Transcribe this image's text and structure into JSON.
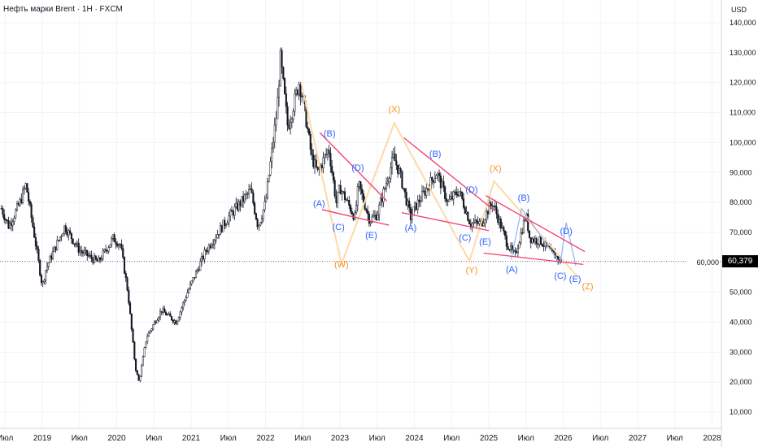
{
  "header": {
    "title": "Нефть марки Brent · 1Н · FXCM"
  },
  "price_scale": {
    "currency": "USD",
    "current_price": "60,379"
  },
  "chart_data": {
    "type": "candlestick",
    "title": "Нефть марки Brent · 1Н · FXCM",
    "ylabel": "USD",
    "ylim": [
      0,
      145000
    ],
    "xlim": [
      2018.45,
      2028.1
    ],
    "y_ticks": [
      "140,000",
      "130,000",
      "120,000",
      "110,000",
      "100,000",
      "90,000",
      "80,000",
      "70,000",
      "60,000",
      "50,000",
      "40,000",
      "30,000",
      "20,000",
      "10,000"
    ],
    "y_tick_values": [
      140,
      130,
      120,
      110,
      100,
      90,
      80,
      70,
      60,
      50,
      40,
      30,
      20,
      10
    ],
    "x_ticks": [
      {
        "t": 2018.5,
        "label": "Июл"
      },
      {
        "t": 2019,
        "label": "2019"
      },
      {
        "t": 2019.5,
        "label": "Июл"
      },
      {
        "t": 2020,
        "label": "2020"
      },
      {
        "t": 2020.5,
        "label": "Июл"
      },
      {
        "t": 2021,
        "label": "2021"
      },
      {
        "t": 2021.5,
        "label": "Июл"
      },
      {
        "t": 2022,
        "label": "2022"
      },
      {
        "t": 2022.5,
        "label": "Июл"
      },
      {
        "t": 2023,
        "label": "2023"
      },
      {
        "t": 2023.5,
        "label": "Июл"
      },
      {
        "t": 2024,
        "label": "2024"
      },
      {
        "t": 2024.5,
        "label": "Июл"
      },
      {
        "t": 2025,
        "label": "2025"
      },
      {
        "t": 2025.5,
        "label": "Июл"
      },
      {
        "t": 2026,
        "label": "2026"
      },
      {
        "t": 2026.5,
        "label": "Июл"
      },
      {
        "t": 2027,
        "label": "2027"
      },
      {
        "t": 2027.5,
        "label": "Июл"
      },
      {
        "t": 2028,
        "label": "2028"
      }
    ],
    "current_price": 60.379,
    "price_path": [
      [
        2018.45,
        78
      ],
      [
        2018.55,
        72
      ],
      [
        2018.7,
        80
      ],
      [
        2018.78,
        86
      ],
      [
        2018.9,
        68
      ],
      [
        2019.0,
        52
      ],
      [
        2019.05,
        58
      ],
      [
        2019.3,
        72
      ],
      [
        2019.5,
        64
      ],
      [
        2019.75,
        60
      ],
      [
        2019.95,
        68
      ],
      [
        2020.05,
        66
      ],
      [
        2020.15,
        50
      ],
      [
        2020.25,
        25
      ],
      [
        2020.3,
        20
      ],
      [
        2020.4,
        35
      ],
      [
        2020.6,
        44
      ],
      [
        2020.8,
        40
      ],
      [
        2020.95,
        50
      ],
      [
        2021.2,
        64
      ],
      [
        2021.5,
        75
      ],
      [
        2021.8,
        84
      ],
      [
        2021.9,
        72
      ],
      [
        2022.0,
        80
      ],
      [
        2022.15,
        110
      ],
      [
        2022.2,
        128
      ],
      [
        2022.3,
        105
      ],
      [
        2022.45,
        120
      ],
      [
        2022.5,
        115
      ],
      [
        2022.62,
        95
      ],
      [
        2022.7,
        90
      ],
      [
        2022.85,
        98
      ],
      [
        2022.95,
        80
      ],
      [
        2023.0,
        85
      ],
      [
        2023.2,
        75
      ],
      [
        2023.25,
        86
      ],
      [
        2023.4,
        74
      ],
      [
        2023.5,
        76
      ],
      [
        2023.72,
        95
      ],
      [
        2023.8,
        90
      ],
      [
        2023.95,
        75
      ],
      [
        2024.0,
        78
      ],
      [
        2024.3,
        90
      ],
      [
        2024.45,
        80
      ],
      [
        2024.6,
        84
      ],
      [
        2024.75,
        73
      ],
      [
        2024.9,
        73
      ],
      [
        2025.0,
        78
      ],
      [
        2025.05,
        80
      ],
      [
        2025.25,
        66
      ],
      [
        2025.35,
        62
      ],
      [
        2025.5,
        76
      ],
      [
        2025.55,
        68
      ],
      [
        2025.7,
        67
      ],
      [
        2025.85,
        63
      ],
      [
        2025.98,
        60.4
      ]
    ],
    "trendlines": [
      [
        [
          2022.73,
          103.3
        ],
        [
          2023.63,
          80.5
        ]
      ],
      [
        [
          2022.76,
          77.6
        ],
        [
          2023.66,
          72.4
        ]
      ],
      [
        [
          2023.86,
          101.6
        ],
        [
          2025.08,
          77.2
        ]
      ],
      [
        [
          2023.83,
          76.6
        ],
        [
          2025.0,
          70.6
        ]
      ],
      [
        [
          2024.96,
          82.3
        ],
        [
          2026.29,
          63.6
        ]
      ],
      [
        [
          2024.93,
          63.1
        ],
        [
          2026.27,
          59.3
        ]
      ]
    ],
    "wxyz_path": [
      [
        2022.48,
        120
      ],
      [
        2023.02,
        59.5
      ],
      [
        2023.73,
        106.5
      ],
      [
        2024.74,
        60.4
      ],
      [
        2025.07,
        87.1
      ],
      [
        2026.2,
        55
      ]
    ],
    "wave_path": [
      [
        2025.3,
        60.9
      ],
      [
        2025.44,
        78
      ],
      [
        2025.96,
        59.5
      ],
      [
        2026.04,
        73.3
      ],
      [
        2026.17,
        58.8
      ]
    ],
    "labels": [
      {
        "text": "(B)",
        "t": 2022.86,
        "p": 103.1,
        "color": "blue"
      },
      {
        "text": "(A)",
        "t": 2022.72,
        "p": 79.8,
        "color": "blue"
      },
      {
        "text": "(C)",
        "t": 2022.98,
        "p": 71.9,
        "color": "blue"
      },
      {
        "text": "(D)",
        "t": 2023.24,
        "p": 91.7,
        "color": "blue"
      },
      {
        "text": "(E)",
        "t": 2023.42,
        "p": 69.2,
        "color": "blue"
      },
      {
        "text": "(W)",
        "t": 2023.02,
        "p": 59.4,
        "color": "orange"
      },
      {
        "text": "(X)",
        "t": 2023.73,
        "p": 111.2,
        "color": "orange"
      },
      {
        "text": "(A)",
        "t": 2023.95,
        "p": 71.6,
        "color": "blue"
      },
      {
        "text": "(B)",
        "t": 2024.28,
        "p": 96.3,
        "color": "blue"
      },
      {
        "text": "(C)",
        "t": 2024.68,
        "p": 68.4,
        "color": "blue"
      },
      {
        "text": "(D)",
        "t": 2024.77,
        "p": 84.4,
        "color": "blue"
      },
      {
        "text": "(E)",
        "t": 2024.95,
        "p": 67.0,
        "color": "blue"
      },
      {
        "text": "(Y)",
        "t": 2024.77,
        "p": 57.5,
        "color": "orange"
      },
      {
        "text": "(X)",
        "t": 2025.09,
        "p": 91.4,
        "color": "orange"
      },
      {
        "text": "(B)",
        "t": 2025.47,
        "p": 81.7,
        "color": "blue"
      },
      {
        "text": "(A)",
        "t": 2025.31,
        "p": 57.8,
        "color": "blue"
      },
      {
        "text": "(D)",
        "t": 2026.04,
        "p": 70.5,
        "color": "blue"
      },
      {
        "text": "(C)",
        "t": 2025.96,
        "p": 55.6,
        "color": "blue"
      },
      {
        "text": "(E)",
        "t": 2026.16,
        "p": 54.5,
        "color": "blue"
      },
      {
        "text": "(Z)",
        "t": 2026.28,
        "p": 52.9,
        "color": "orange"
      }
    ]
  },
  "colors": {
    "blue": "#2962ff",
    "orange": "#f7931a",
    "trend": "#f23d6d",
    "wxyz": "#ffd9a8",
    "wave": "#90b4f5",
    "candle": "#131722",
    "grid": "#f0f3fa"
  }
}
